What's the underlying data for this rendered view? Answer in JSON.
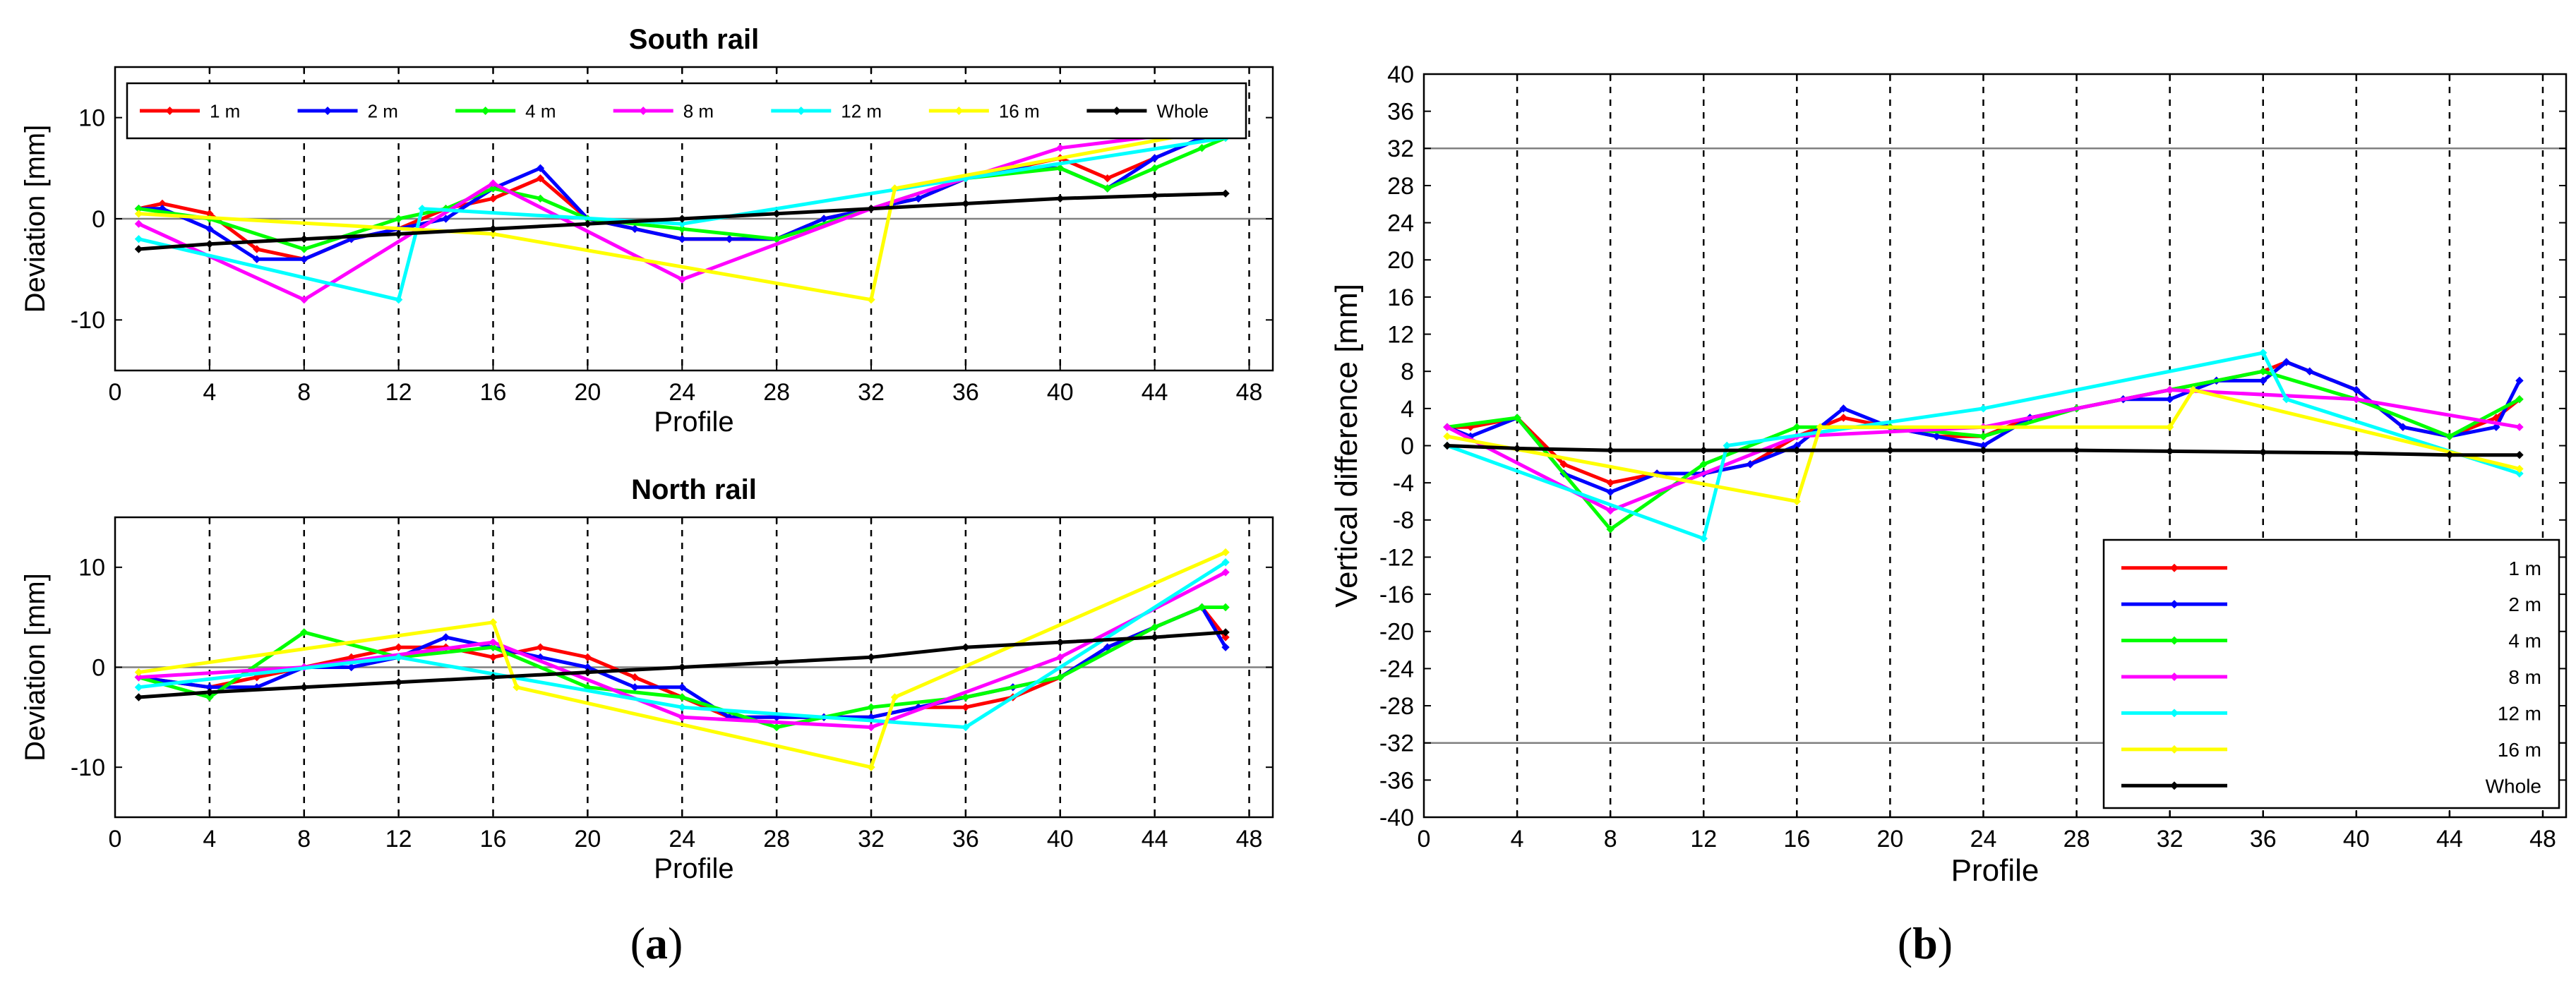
{
  "colors": {
    "1m": "#ff0000",
    "2m": "#0000ff",
    "4m": "#00ff00",
    "8m": "#ff00ff",
    "12m": "#00ffff",
    "16m": "#ffff00",
    "whole": "#000000",
    "reference": "#808080",
    "grid": "#000000"
  },
  "panel_labels": {
    "a": {
      "open": "(",
      "letter": "a",
      "close": ")"
    },
    "b": {
      "open": "(",
      "letter": "b",
      "close": ")"
    }
  },
  "chart_data": [
    {
      "id": "south",
      "type": "line",
      "title": "South rail",
      "xlabel": "Profile",
      "ylabel": "Deviation [mm]",
      "xlim": [
        0,
        49
      ],
      "ylim": [
        -15,
        15
      ],
      "xticks": [
        0,
        4,
        8,
        12,
        16,
        20,
        24,
        28,
        32,
        36,
        40,
        44,
        48
      ],
      "yticks": [
        -10,
        0,
        10
      ],
      "grid_x": [
        4,
        8,
        12,
        16,
        20,
        24,
        28,
        32,
        36,
        40,
        44,
        48
      ],
      "reference_lines": [
        0
      ],
      "legend": "top, horizontal",
      "series": [
        {
          "name": "1 m",
          "key": "1m",
          "x": [
            1,
            2,
            4,
            6,
            8,
            10,
            12,
            14,
            16,
            18,
            20,
            22,
            24,
            26,
            28,
            30,
            32,
            34,
            36,
            38,
            40,
            42,
            44,
            46,
            47
          ],
          "y": [
            1,
            1.5,
            0.5,
            -3,
            -4,
            -2,
            -1,
            1,
            2,
            4,
            0,
            -1,
            -2,
            -2,
            -2,
            0,
            1,
            2,
            4,
            5,
            6,
            4,
            6,
            8,
            9
          ]
        },
        {
          "name": "2 m",
          "key": "2m",
          "x": [
            1,
            2,
            4,
            6,
            8,
            10,
            12,
            14,
            16,
            18,
            20,
            22,
            24,
            26,
            28,
            30,
            32,
            34,
            36,
            38,
            40,
            42,
            44,
            46,
            47
          ],
          "y": [
            1,
            1,
            -1,
            -4,
            -4,
            -2,
            -1,
            0,
            3,
            5,
            0,
            -1,
            -2,
            -2,
            -2,
            0,
            1,
            2,
            4,
            5,
            5,
            3,
            6,
            8,
            9
          ]
        },
        {
          "name": "4 m",
          "key": "4m",
          "x": [
            1,
            4,
            8,
            12,
            14,
            16,
            18,
            20,
            24,
            28,
            32,
            36,
            40,
            42,
            44,
            46,
            47
          ],
          "y": [
            1,
            0,
            -3,
            0,
            1,
            3,
            2,
            0,
            -1,
            -2,
            1,
            4,
            5,
            3,
            5,
            7,
            8
          ]
        },
        {
          "name": "8 m",
          "key": "8m",
          "x": [
            1,
            8,
            16,
            24,
            32,
            40,
            47
          ],
          "y": [
            -0.5,
            -8,
            3.5,
            -6,
            1,
            7,
            9
          ]
        },
        {
          "name": "12 m",
          "key": "12m",
          "x": [
            1,
            12,
            13,
            24,
            36,
            47
          ],
          "y": [
            -2,
            -8,
            1,
            -0.5,
            4,
            8
          ]
        },
        {
          "name": "16 m",
          "key": "16m",
          "x": [
            1,
            16,
            32,
            33,
            47
          ],
          "y": [
            0.5,
            -1.5,
            -8,
            3,
            9
          ]
        },
        {
          "name": "Whole",
          "key": "whole",
          "x": [
            1,
            4,
            8,
            12,
            16,
            20,
            24,
            28,
            32,
            36,
            40,
            44,
            47
          ],
          "y": [
            -3,
            -2.5,
            -2,
            -1.5,
            -1,
            -0.5,
            0,
            0.5,
            1,
            1.5,
            2,
            2.3,
            2.5
          ]
        }
      ]
    },
    {
      "id": "north",
      "type": "line",
      "title": "North rail",
      "xlabel": "Profile",
      "ylabel": "Deviation [mm]",
      "xlim": [
        0,
        49
      ],
      "ylim": [
        -15,
        15
      ],
      "xticks": [
        0,
        4,
        8,
        12,
        16,
        20,
        24,
        28,
        32,
        36,
        40,
        44,
        48
      ],
      "yticks": [
        -10,
        0,
        10
      ],
      "grid_x": [
        4,
        8,
        12,
        16,
        20,
        24,
        28,
        32,
        36,
        40,
        44,
        48
      ],
      "reference_lines": [
        0
      ],
      "series": [
        {
          "name": "1 m",
          "key": "1m",
          "x": [
            1,
            4,
            6,
            8,
            10,
            12,
            14,
            16,
            18,
            20,
            22,
            24,
            26,
            28,
            30,
            32,
            34,
            36,
            38,
            40,
            42,
            44,
            46,
            47
          ],
          "y": [
            -1,
            -2,
            -1,
            0,
            1,
            2,
            2,
            1,
            2,
            1,
            -1,
            -3,
            -5,
            -5,
            -5,
            -5,
            -4,
            -4,
            -3,
            -1,
            2,
            4,
            6,
            3
          ]
        },
        {
          "name": "2 m",
          "key": "2m",
          "x": [
            1,
            4,
            6,
            8,
            10,
            12,
            14,
            16,
            18,
            20,
            22,
            24,
            26,
            28,
            30,
            32,
            34,
            36,
            38,
            40,
            42,
            44,
            46,
            47
          ],
          "y": [
            -1,
            -2,
            -2,
            0,
            0,
            1,
            3,
            2,
            1,
            0,
            -2,
            -2,
            -5,
            -5,
            -5,
            -5,
            -4,
            -3,
            -2,
            -1,
            2,
            4,
            6,
            2
          ]
        },
        {
          "name": "4 m",
          "key": "4m",
          "x": [
            1,
            4,
            8,
            12,
            16,
            20,
            24,
            28,
            32,
            36,
            40,
            44,
            46,
            47
          ],
          "y": [
            -1,
            -3,
            3.5,
            1,
            2,
            -2,
            -3,
            -6,
            -4,
            -3,
            -1,
            4,
            6,
            6
          ]
        },
        {
          "name": "8 m",
          "key": "8m",
          "x": [
            1,
            8,
            16,
            24,
            32,
            40,
            47
          ],
          "y": [
            -1,
            0,
            2.5,
            -5,
            -6,
            1,
            9.5
          ]
        },
        {
          "name": "12 m",
          "key": "12m",
          "x": [
            1,
            12,
            24,
            36,
            47
          ],
          "y": [
            -2,
            1,
            -4,
            -6,
            10.5
          ]
        },
        {
          "name": "16 m",
          "key": "16m",
          "x": [
            1,
            16,
            17,
            32,
            33,
            47
          ],
          "y": [
            -0.5,
            4.5,
            -2,
            -10,
            -3,
            11.5
          ]
        },
        {
          "name": "Whole",
          "key": "whole",
          "x": [
            1,
            4,
            8,
            12,
            16,
            20,
            24,
            28,
            32,
            36,
            40,
            44,
            47
          ],
          "y": [
            -3,
            -2.5,
            -2,
            -1.5,
            -1,
            -0.5,
            0,
            0.5,
            1,
            2,
            2.5,
            3,
            3.5
          ]
        }
      ]
    },
    {
      "id": "vertical",
      "type": "line",
      "title": "",
      "xlabel": "Profile",
      "ylabel": "Vertical difference [mm]",
      "xlim": [
        0,
        49
      ],
      "ylim": [
        -40,
        40
      ],
      "xticks": [
        0,
        4,
        8,
        12,
        16,
        20,
        24,
        28,
        32,
        36,
        40,
        44,
        48
      ],
      "yticks": [
        -40,
        -36,
        -32,
        -28,
        -24,
        -20,
        -16,
        -12,
        -8,
        -4,
        0,
        4,
        8,
        12,
        16,
        20,
        24,
        28,
        32,
        36,
        40
      ],
      "grid_x": [
        4,
        8,
        12,
        16,
        20,
        24,
        28,
        32,
        36,
        40,
        44,
        48
      ],
      "reference_lines": [
        32,
        -32
      ],
      "legend": "bottom-right, vertical",
      "series": [
        {
          "name": "1 m",
          "key": "1m",
          "x": [
            1,
            2,
            4,
            6,
            8,
            10,
            12,
            14,
            16,
            18,
            20,
            22,
            24,
            26,
            28,
            30,
            32,
            34,
            36,
            37,
            38,
            40,
            42,
            44,
            46,
            47
          ],
          "y": [
            2,
            2,
            3,
            -2,
            -4,
            -3,
            -3,
            -2,
            1,
            3,
            2,
            1,
            1,
            3,
            4,
            5,
            6,
            7,
            8,
            9,
            8,
            6,
            2,
            1,
            3,
            5
          ]
        },
        {
          "name": "2 m",
          "key": "2m",
          "x": [
            1,
            2,
            4,
            6,
            8,
            10,
            12,
            14,
            16,
            18,
            20,
            22,
            24,
            26,
            28,
            30,
            32,
            34,
            36,
            37,
            38,
            40,
            42,
            44,
            46,
            47
          ],
          "y": [
            2,
            1,
            3,
            -3,
            -5,
            -3,
            -3,
            -2,
            0,
            4,
            2,
            1,
            0,
            3,
            4,
            5,
            5,
            7,
            7,
            9,
            8,
            6,
            2,
            1,
            2,
            7
          ]
        },
        {
          "name": "4 m",
          "key": "4m",
          "x": [
            1,
            4,
            8,
            12,
            16,
            20,
            24,
            28,
            32,
            36,
            40,
            44,
            47
          ],
          "y": [
            2,
            3,
            -9,
            -2,
            2,
            2,
            1,
            4,
            6,
            8,
            5,
            1,
            5
          ]
        },
        {
          "name": "8 m",
          "key": "8m",
          "x": [
            1,
            8,
            16,
            24,
            32,
            40,
            47
          ],
          "y": [
            2,
            -7,
            1,
            2,
            6,
            5,
            2
          ]
        },
        {
          "name": "12 m",
          "key": "12m",
          "x": [
            1,
            12,
            13,
            24,
            36,
            37,
            47
          ],
          "y": [
            0,
            -10,
            0,
            4,
            10,
            5,
            -3
          ]
        },
        {
          "name": "16 m",
          "key": "16m",
          "x": [
            1,
            16,
            17,
            32,
            33,
            47
          ],
          "y": [
            1,
            -6,
            2,
            2,
            6,
            -2.5
          ]
        },
        {
          "name": "Whole",
          "key": "whole",
          "x": [
            1,
            4,
            8,
            12,
            16,
            20,
            24,
            28,
            32,
            36,
            40,
            44,
            47
          ],
          "y": [
            0,
            -0.3,
            -0.5,
            -0.5,
            -0.5,
            -0.5,
            -0.5,
            -0.5,
            -0.6,
            -0.7,
            -0.8,
            -1,
            -1
          ]
        }
      ]
    }
  ]
}
